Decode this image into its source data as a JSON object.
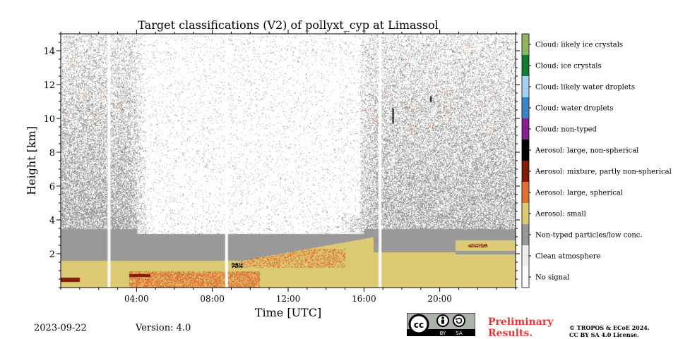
{
  "chart_data": {
    "type": "heatmap",
    "title": "Target classifications (V2) of pollyxt_cyp at Limassol",
    "xlabel": "Time [UTC]",
    "ylabel": "Height [km]",
    "xlim_hours": [
      0,
      24
    ],
    "ylim_km": [
      0,
      15
    ],
    "x_ticks": [
      {
        "value": 4,
        "label": "04:00"
      },
      {
        "value": 8,
        "label": "08:00"
      },
      {
        "value": 12,
        "label": "12:00"
      },
      {
        "value": 16,
        "label": "16:00"
      },
      {
        "value": 20,
        "label": "20:00"
      }
    ],
    "y_ticks": [
      2,
      4,
      6,
      8,
      10,
      12,
      14
    ],
    "classes": [
      {
        "label": "No signal",
        "color": "#ffffff"
      },
      {
        "label": "Clean atmosphere",
        "color": "#f0f0f0"
      },
      {
        "label": "Non-typed particles/low conc.",
        "color": "#999999"
      },
      {
        "label": "Aerosol: small",
        "color": "#dcca74"
      },
      {
        "label": "Aerosol: large, spherical",
        "color": "#e07033"
      },
      {
        "label": "Aerosol: mixture, partly non-spherical",
        "color": "#7d1d05"
      },
      {
        "label": "Aerosol: large, non-spherical",
        "color": "#000000"
      },
      {
        "label": "Cloud: non-typed",
        "color": "#84208f"
      },
      {
        "label": "Cloud: water droplets",
        "color": "#3b86c8"
      },
      {
        "label": "Cloud: likely water droplets",
        "color": "#a4d2f0"
      },
      {
        "label": "Cloud: ice crystals",
        "color": "#157a33"
      },
      {
        "label": "Cloud: likely ice crystals",
        "color": "#8fb561"
      }
    ],
    "data_gaps_hours": [
      2.55,
      8.75,
      16.85
    ],
    "layers": {
      "aerosol_small_top_km": 1.6,
      "nontyped_layer_top_km": 3.5,
      "elevated_small_layer_km": [
        2.1,
        3.0
      ],
      "night_noise_until_hour": 3.6,
      "night_noise_from_hour": 16.0
    },
    "grid": false,
    "legend": "right colorbar"
  },
  "footer": {
    "date": "2023-09-22",
    "version": "Version: 4.0",
    "preliminary": [
      "Preliminary",
      "Results."
    ],
    "copyright": [
      "© TROPOS & ECoE 2024.",
      "CC BY SA 4.0 License."
    ],
    "cc_text": "cc",
    "by_text": "BY",
    "sa_text": "SA"
  }
}
